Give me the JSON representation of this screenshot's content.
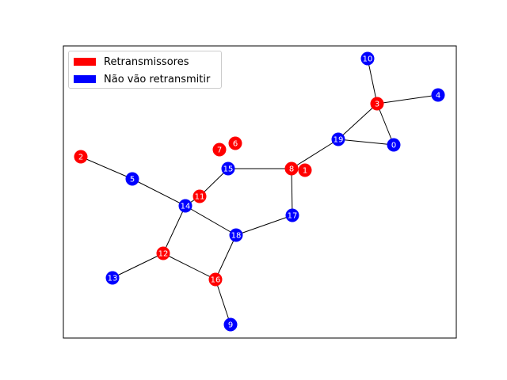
{
  "legend": {
    "items": [
      {
        "label": "Retransmissores",
        "color": "#ff0000"
      },
      {
        "label": "Não vão retransmitir",
        "color": "#0000ff"
      }
    ]
  },
  "colors": {
    "red": "#ff0000",
    "blue": "#0000ff",
    "edge": "#000000",
    "label": "#ffffff"
  },
  "graph": {
    "nodes": [
      {
        "id": "0",
        "label": "0",
        "group": "blue"
      },
      {
        "id": "1",
        "label": "1",
        "group": "red"
      },
      {
        "id": "2",
        "label": "2",
        "group": "red"
      },
      {
        "id": "3",
        "label": "3",
        "group": "red"
      },
      {
        "id": "4",
        "label": "4",
        "group": "blue"
      },
      {
        "id": "5",
        "label": "5",
        "group": "blue"
      },
      {
        "id": "6",
        "label": "6",
        "group": "red"
      },
      {
        "id": "7",
        "label": "7",
        "group": "red"
      },
      {
        "id": "8",
        "label": "8",
        "group": "red"
      },
      {
        "id": "9",
        "label": "9",
        "group": "blue"
      },
      {
        "id": "10",
        "label": "10",
        "group": "blue"
      },
      {
        "id": "11",
        "label": "11",
        "group": "red"
      },
      {
        "id": "12",
        "label": "12",
        "group": "red"
      },
      {
        "id": "13",
        "label": "13",
        "group": "blue"
      },
      {
        "id": "14",
        "label": "14",
        "group": "blue"
      },
      {
        "id": "15",
        "label": "15",
        "group": "blue"
      },
      {
        "id": "16",
        "label": "16",
        "group": "red"
      },
      {
        "id": "17",
        "label": "17",
        "group": "blue"
      },
      {
        "id": "18",
        "label": "18",
        "group": "blue"
      },
      {
        "id": "19",
        "label": "19",
        "group": "blue"
      }
    ],
    "edges": [
      [
        "10",
        "3"
      ],
      [
        "3",
        "4"
      ],
      [
        "3",
        "19"
      ],
      [
        "3",
        "0"
      ],
      [
        "19",
        "0"
      ],
      [
        "19",
        "8"
      ],
      [
        "8",
        "15"
      ],
      [
        "8",
        "17"
      ],
      [
        "17",
        "18"
      ],
      [
        "15",
        "11"
      ],
      [
        "11",
        "14"
      ],
      [
        "2",
        "5"
      ],
      [
        "5",
        "14"
      ],
      [
        "14",
        "18"
      ],
      [
        "14",
        "12"
      ],
      [
        "18",
        "16"
      ],
      [
        "12",
        "16"
      ],
      [
        "12",
        "13"
      ],
      [
        "16",
        "9"
      ]
    ]
  }
}
